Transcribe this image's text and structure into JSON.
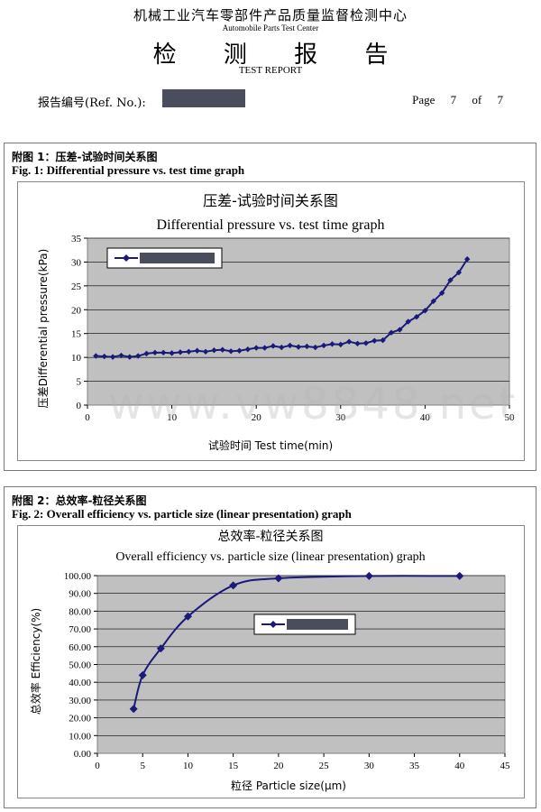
{
  "header": {
    "org_cn": "机械工业汽车零部件产品质量监督检测中心",
    "org_en": "Automobile Parts Test Center",
    "title_cn": "检 测 报 告",
    "title_en": "TEST REPORT",
    "ref_label": "报告编号(Ref. No.):",
    "page_word": "Page",
    "page_num": "7",
    "of_word": "of",
    "page_total": "7"
  },
  "watermark": "www.vw8848.net",
  "figures": [
    {
      "caption_cn": "附图 1：压差-试验时间关系图",
      "caption_en": "Fig. 1: Differential pressure vs. test time graph"
    },
    {
      "caption_cn": "附图 2：总效率-粒径关系图",
      "caption_en": "Fig. 2: Overall efficiency vs. particle size (linear presentation) graph"
    }
  ],
  "chart_data": [
    {
      "type": "line",
      "title": "压差-试验时间关系图",
      "subtitle": "Differential pressure vs. test time graph",
      "xlabel": "试验时间 Test time(min)",
      "ylabel": "压差Differential pressure(kPa)",
      "xlim": [
        0,
        50
      ],
      "ylim": [
        0,
        35
      ],
      "xticks": [
        0,
        10,
        20,
        30,
        40,
        50
      ],
      "yticks": [
        0,
        5,
        10,
        15,
        20,
        25,
        30,
        35
      ],
      "ytick_decimals": 0,
      "grid": true,
      "legend": "top-left",
      "colors": {
        "line": "#1a1a7a",
        "plot_bg": "#c0c0c0"
      },
      "series": [
        {
          "x": [
            1,
            2,
            3,
            4,
            5,
            6,
            7,
            8,
            9,
            10,
            11,
            12,
            13,
            14,
            15,
            16,
            17,
            18,
            19,
            20,
            21,
            22,
            23,
            24,
            25,
            26,
            27,
            28,
            29,
            30,
            31,
            32,
            33,
            34,
            35,
            36,
            37,
            38,
            39,
            40,
            41,
            42,
            43,
            44,
            45
          ],
          "y": [
            10.3,
            10.2,
            10.1,
            10.4,
            10.1,
            10.3,
            10.8,
            11.0,
            11.0,
            10.9,
            11.1,
            11.2,
            11.4,
            11.2,
            11.5,
            11.6,
            11.3,
            11.4,
            11.7,
            12.0,
            12.0,
            12.4,
            12.1,
            12.5,
            12.2,
            12.3,
            12.1,
            12.5,
            12.8,
            12.7,
            13.3,
            12.9,
            13.0,
            13.5,
            13.6,
            15.2,
            15.8,
            17.5,
            18.5,
            19.8,
            21.8,
            23.5,
            26.2,
            27.8,
            30.6
          ]
        }
      ]
    },
    {
      "type": "line",
      "title": "总效率-粒径关系图",
      "subtitle": "Overall efficiency vs. particle size (linear presentation) graph",
      "xlabel": "粒径 Particle size(μm)",
      "ylabel": "总效率 Efficiency(%)",
      "xlim": [
        0,
        45
      ],
      "ylim": [
        0,
        100
      ],
      "xticks": [
        0,
        5,
        10,
        15,
        20,
        25,
        30,
        35,
        40,
        45
      ],
      "yticks": [
        0,
        10,
        20,
        30,
        40,
        50,
        60,
        70,
        80,
        90,
        100
      ],
      "ytick_decimals": 2,
      "grid": true,
      "legend": "center-right",
      "colors": {
        "line": "#1a1a7a",
        "plot_bg": "#c0c0c0"
      },
      "series": [
        {
          "x": [
            4,
            5,
            7,
            10,
            15,
            20,
            30,
            40
          ],
          "y": [
            25.0,
            44.0,
            59.0,
            77.0,
            94.5,
            98.5,
            99.8,
            99.8
          ]
        }
      ]
    }
  ]
}
